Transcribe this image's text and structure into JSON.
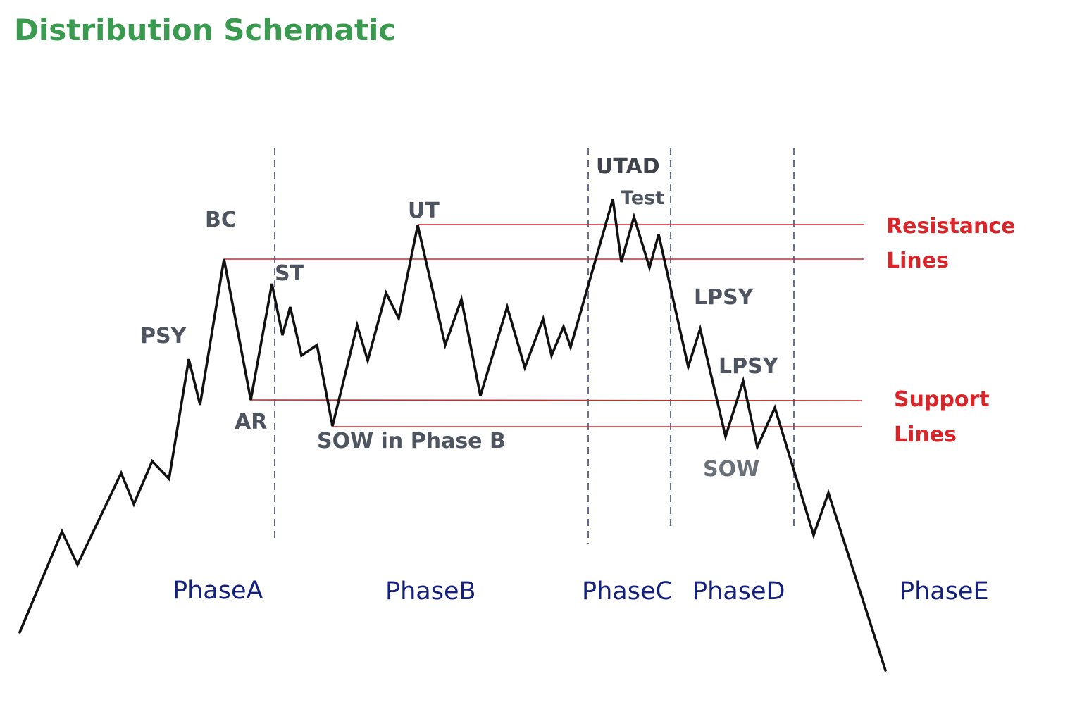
{
  "title": "Distribution Schematic",
  "labels": {
    "psy": "PSY",
    "bc": "BC",
    "ar": "AR",
    "st": "ST",
    "sow_phase_b": "SOW in Phase B",
    "ut": "UT",
    "utad": "UTAD",
    "test": "Test",
    "lpsy_1": "LPSY",
    "lpsy_2": "LPSY",
    "sow": "SOW"
  },
  "phases": [
    "PhaseA",
    "PhaseB",
    "PhaseC",
    "PhaseD",
    "PhaseE"
  ],
  "legend": {
    "resistance": [
      "Resistance",
      "Lines"
    ],
    "support": [
      "Support",
      "Lines"
    ]
  },
  "colors": {
    "title": "#3a9a4f",
    "lines": "#d8252a",
    "phase_text": "#14207e",
    "price": "#111111"
  }
}
